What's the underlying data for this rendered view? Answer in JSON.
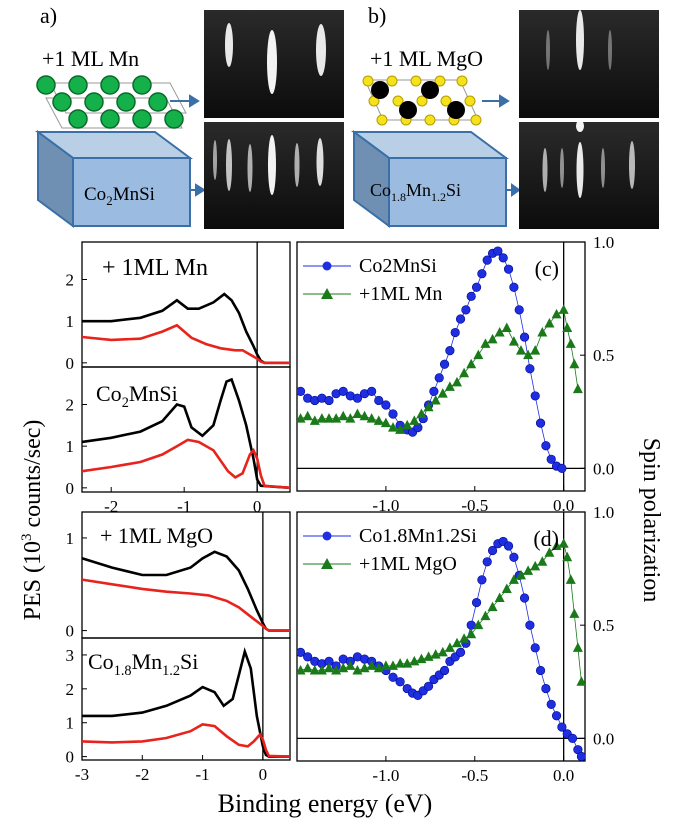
{
  "panel_a": {
    "label": "a)",
    "layer": "+1 ML Mn",
    "substrate": {
      "pre": "Co",
      "sub1": "2",
      "mid": "MnSi",
      "sub2": "",
      "post": ""
    }
  },
  "panel_b": {
    "label": "b)",
    "layer": "+1 ML MgO",
    "substrate": {
      "pre": "Co",
      "sub1": "1.8",
      "mid": "Mn",
      "sub2": "1.2",
      "post": "Si"
    }
  },
  "y_left_label": "PES (10",
  "y_left_sup": "3",
  "y_left_rest": " counts/sec)",
  "y_right_label": "Spin polarization",
  "x_label": "Binding energy (eV)",
  "colors": {
    "black": "#000000",
    "red": "#e8231c",
    "blue": "#1f2ee0",
    "green": "#1a7a1a",
    "mn_ball": "#14b04a",
    "mg_black": "#000000",
    "o_yellow": "#f5e21a",
    "box": "#8fb1d6"
  },
  "chart_data": [
    {
      "type": "line",
      "name": "pes-mn",
      "title": "+ 1ML Mn",
      "xlim": [
        -2.4,
        0.45
      ],
      "ylim": [
        -0.1,
        2.9
      ],
      "yticks": [
        0,
        1,
        2
      ],
      "series": [
        {
          "color": "black",
          "x": [
            -2.4,
            -2.0,
            -1.6,
            -1.3,
            -1.1,
            -0.95,
            -0.8,
            -0.6,
            -0.45,
            -0.35,
            -0.25,
            -0.15,
            -0.05,
            0.0,
            0.05,
            0.1,
            0.45
          ],
          "y": [
            1.0,
            1.0,
            1.08,
            1.25,
            1.5,
            1.3,
            1.3,
            1.45,
            1.65,
            1.5,
            1.2,
            0.75,
            0.4,
            0.2,
            0.05,
            0.0,
            0.0
          ]
        },
        {
          "color": "red",
          "x": [
            -2.4,
            -2.0,
            -1.6,
            -1.3,
            -1.1,
            -0.9,
            -0.7,
            -0.5,
            -0.3,
            -0.2,
            -0.1,
            0.0,
            0.05,
            0.1,
            0.45
          ],
          "y": [
            0.62,
            0.55,
            0.58,
            0.75,
            0.9,
            0.6,
            0.45,
            0.35,
            0.3,
            0.3,
            0.2,
            0.1,
            0.03,
            0.0,
            0.0
          ]
        }
      ]
    },
    {
      "type": "line",
      "name": "pes-co2mnsi",
      "title": "Co2MnSi",
      "xlim": [
        -2.4,
        0.45
      ],
      "ylim": [
        -0.1,
        2.9
      ],
      "yticks": [
        0,
        1,
        2
      ],
      "xticks": [
        -2,
        -1,
        0
      ],
      "series": [
        {
          "color": "black",
          "x": [
            -2.4,
            -2.0,
            -1.6,
            -1.3,
            -1.1,
            -1.0,
            -0.9,
            -0.75,
            -0.6,
            -0.5,
            -0.42,
            -0.35,
            -0.25,
            -0.15,
            -0.05,
            0.0,
            0.05,
            0.45
          ],
          "y": [
            1.1,
            1.2,
            1.35,
            1.6,
            2.0,
            1.95,
            1.45,
            1.25,
            1.5,
            2.1,
            2.55,
            2.6,
            2.1,
            1.5,
            0.7,
            0.2,
            0.05,
            0.0
          ]
        },
        {
          "color": "red",
          "x": [
            -2.4,
            -2.0,
            -1.6,
            -1.3,
            -1.1,
            -0.95,
            -0.8,
            -0.6,
            -0.4,
            -0.3,
            -0.2,
            -0.1,
            -0.05,
            0.0,
            0.05,
            0.1,
            0.45
          ],
          "y": [
            0.4,
            0.5,
            0.62,
            0.8,
            1.0,
            1.15,
            1.1,
            0.9,
            0.4,
            0.25,
            0.35,
            0.8,
            0.9,
            0.7,
            0.3,
            0.05,
            0.0
          ]
        }
      ]
    },
    {
      "type": "line",
      "name": "pes-mgo",
      "title": "+ 1ML MgO",
      "xlim": [
        -3.0,
        0.45
      ],
      "ylim": [
        -0.08,
        1.28
      ],
      "yticks": [
        0,
        1
      ],
      "series": [
        {
          "color": "black",
          "x": [
            -3.0,
            -2.5,
            -2.0,
            -1.6,
            -1.2,
            -1.0,
            -0.8,
            -0.6,
            -0.4,
            -0.25,
            -0.1,
            0.0,
            0.05,
            0.1,
            0.45
          ],
          "y": [
            0.78,
            0.68,
            0.6,
            0.6,
            0.68,
            0.78,
            0.85,
            0.8,
            0.65,
            0.45,
            0.22,
            0.08,
            0.02,
            0.0,
            0.0
          ]
        },
        {
          "color": "red",
          "x": [
            -3.0,
            -2.5,
            -2.0,
            -1.6,
            -1.2,
            -0.9,
            -0.6,
            -0.4,
            -0.2,
            0.0,
            0.05,
            0.1,
            0.45
          ],
          "y": [
            0.55,
            0.5,
            0.45,
            0.42,
            0.4,
            0.38,
            0.32,
            0.25,
            0.15,
            0.05,
            0.02,
            0.0,
            0.0
          ]
        }
      ]
    },
    {
      "type": "line",
      "name": "pes-co18",
      "title": "Co1.8Mn1.2Si",
      "xlim": [
        -3.0,
        0.45
      ],
      "ylim": [
        -0.1,
        3.5
      ],
      "yticks": [
        0,
        1,
        2,
        3
      ],
      "xticks": [
        -3,
        -2,
        -1,
        0
      ],
      "series": [
        {
          "color": "black",
          "x": [
            -3.0,
            -2.5,
            -2.0,
            -1.6,
            -1.2,
            -1.0,
            -0.8,
            -0.65,
            -0.5,
            -0.4,
            -0.3,
            -0.2,
            -0.1,
            0.0,
            0.05,
            0.1,
            0.45
          ],
          "y": [
            1.2,
            1.2,
            1.3,
            1.5,
            1.8,
            2.05,
            1.9,
            1.5,
            1.7,
            2.4,
            3.1,
            2.6,
            1.2,
            0.3,
            0.05,
            0.0,
            0.0
          ]
        },
        {
          "color": "red",
          "x": [
            -3.0,
            -2.5,
            -2.0,
            -1.6,
            -1.2,
            -1.0,
            -0.8,
            -0.6,
            -0.4,
            -0.25,
            -0.15,
            -0.05,
            0.0,
            0.05,
            0.1,
            0.45
          ],
          "y": [
            0.45,
            0.42,
            0.45,
            0.55,
            0.75,
            0.95,
            0.9,
            0.6,
            0.35,
            0.3,
            0.45,
            0.65,
            0.5,
            0.2,
            0.02,
            0.0
          ]
        }
      ]
    },
    {
      "type": "scatter",
      "name": "spin-c",
      "title": "(c)",
      "xlim": [
        -1.5,
        0.12
      ],
      "ylim": [
        -0.1,
        1.0
      ],
      "yticks": [
        0.0,
        0.5,
        1.0
      ],
      "xticks": [
        -1.0,
        -0.5,
        0.0
      ],
      "legend": [
        "Co2MnSi",
        "+1ML Mn"
      ],
      "series": [
        {
          "name": "Co2MnSi",
          "color": "blue",
          "marker": "circle",
          "x": [
            -1.48,
            -1.44,
            -1.4,
            -1.36,
            -1.32,
            -1.28,
            -1.24,
            -1.2,
            -1.16,
            -1.12,
            -1.08,
            -1.04,
            -1.0,
            -0.96,
            -0.92,
            -0.88,
            -0.85,
            -0.82,
            -0.79,
            -0.76,
            -0.73,
            -0.7,
            -0.67,
            -0.64,
            -0.61,
            -0.58,
            -0.55,
            -0.52,
            -0.49,
            -0.46,
            -0.43,
            -0.4,
            -0.37,
            -0.34,
            -0.31,
            -0.28,
            -0.25,
            -0.22,
            -0.19,
            -0.16,
            -0.13,
            -0.1,
            -0.07,
            -0.04,
            -0.01
          ],
          "y": [
            0.34,
            0.31,
            0.3,
            0.31,
            0.3,
            0.33,
            0.34,
            0.32,
            0.31,
            0.33,
            0.34,
            0.3,
            0.28,
            0.24,
            0.19,
            0.17,
            0.16,
            0.18,
            0.22,
            0.28,
            0.34,
            0.4,
            0.46,
            0.52,
            0.6,
            0.66,
            0.7,
            0.76,
            0.8,
            0.86,
            0.92,
            0.95,
            0.96,
            0.93,
            0.88,
            0.8,
            0.7,
            0.58,
            0.44,
            0.32,
            0.2,
            0.1,
            0.04,
            0.01,
            0.0
          ]
        },
        {
          "name": "+1ML Mn",
          "color": "green",
          "marker": "triangle",
          "x": [
            -1.48,
            -1.44,
            -1.4,
            -1.36,
            -1.32,
            -1.28,
            -1.24,
            -1.2,
            -1.16,
            -1.12,
            -1.08,
            -1.04,
            -1.0,
            -0.96,
            -0.92,
            -0.88,
            -0.84,
            -0.8,
            -0.76,
            -0.72,
            -0.68,
            -0.64,
            -0.6,
            -0.56,
            -0.52,
            -0.48,
            -0.44,
            -0.4,
            -0.36,
            -0.32,
            -0.28,
            -0.24,
            -0.2,
            -0.16,
            -0.12,
            -0.08,
            -0.04,
            0.0,
            0.02,
            0.04,
            0.06,
            0.08
          ],
          "y": [
            0.22,
            0.23,
            0.21,
            0.22,
            0.22,
            0.22,
            0.23,
            0.22,
            0.24,
            0.23,
            0.22,
            0.21,
            0.2,
            0.18,
            0.17,
            0.19,
            0.21,
            0.24,
            0.27,
            0.3,
            0.33,
            0.36,
            0.38,
            0.42,
            0.46,
            0.5,
            0.55,
            0.57,
            0.6,
            0.62,
            0.56,
            0.52,
            0.5,
            0.52,
            0.6,
            0.64,
            0.68,
            0.7,
            0.62,
            0.55,
            0.46,
            0.35
          ]
        }
      ]
    },
    {
      "type": "scatter",
      "name": "spin-d",
      "title": "(d)",
      "xlim": [
        -1.5,
        0.12
      ],
      "ylim": [
        -0.1,
        1.0
      ],
      "yticks": [
        0.0,
        0.5,
        1.0
      ],
      "xticks": [
        -1.0,
        -0.5,
        0.0
      ],
      "legend": [
        "Co1.8Mn1.2Si",
        "+1ML MgO"
      ],
      "series": [
        {
          "name": "Co1.8Mn1.2Si",
          "color": "blue",
          "marker": "circle",
          "x": [
            -1.48,
            -1.44,
            -1.4,
            -1.36,
            -1.32,
            -1.28,
            -1.24,
            -1.2,
            -1.16,
            -1.12,
            -1.08,
            -1.04,
            -1.0,
            -0.96,
            -0.92,
            -0.88,
            -0.85,
            -0.82,
            -0.79,
            -0.76,
            -0.73,
            -0.7,
            -0.67,
            -0.64,
            -0.61,
            -0.58,
            -0.55,
            -0.52,
            -0.49,
            -0.46,
            -0.43,
            -0.4,
            -0.37,
            -0.34,
            -0.31,
            -0.28,
            -0.25,
            -0.22,
            -0.19,
            -0.16,
            -0.13,
            -0.1,
            -0.07,
            -0.04,
            -0.01,
            0.02,
            0.05,
            0.08,
            0.1
          ],
          "y": [
            0.38,
            0.36,
            0.34,
            0.33,
            0.34,
            0.32,
            0.35,
            0.34,
            0.36,
            0.35,
            0.34,
            0.32,
            0.3,
            0.27,
            0.25,
            0.22,
            0.2,
            0.19,
            0.21,
            0.23,
            0.26,
            0.28,
            0.3,
            0.34,
            0.36,
            0.38,
            0.42,
            0.5,
            0.6,
            0.7,
            0.78,
            0.83,
            0.86,
            0.87,
            0.85,
            0.8,
            0.72,
            0.62,
            0.5,
            0.4,
            0.3,
            0.22,
            0.15,
            0.1,
            0.05,
            0.02,
            0.0,
            -0.05,
            -0.08
          ]
        },
        {
          "name": "+1ML MgO",
          "color": "green",
          "marker": "triangle",
          "x": [
            -1.48,
            -1.44,
            -1.4,
            -1.36,
            -1.32,
            -1.28,
            -1.24,
            -1.2,
            -1.16,
            -1.12,
            -1.08,
            -1.04,
            -1.0,
            -0.96,
            -0.92,
            -0.88,
            -0.84,
            -0.8,
            -0.76,
            -0.72,
            -0.68,
            -0.64,
            -0.6,
            -0.56,
            -0.52,
            -0.48,
            -0.44,
            -0.4,
            -0.36,
            -0.32,
            -0.28,
            -0.24,
            -0.2,
            -0.16,
            -0.12,
            -0.08,
            -0.04,
            0.0,
            0.02,
            0.04,
            0.06,
            0.08,
            0.1
          ],
          "y": [
            0.3,
            0.31,
            0.3,
            0.3,
            0.31,
            0.3,
            0.31,
            0.32,
            0.3,
            0.31,
            0.32,
            0.31,
            0.32,
            0.32,
            0.33,
            0.33,
            0.34,
            0.35,
            0.36,
            0.37,
            0.38,
            0.4,
            0.42,
            0.44,
            0.46,
            0.5,
            0.54,
            0.58,
            0.62,
            0.66,
            0.7,
            0.72,
            0.74,
            0.76,
            0.78,
            0.82,
            0.85,
            0.86,
            0.8,
            0.7,
            0.55,
            0.4,
            0.25
          ]
        }
      ]
    }
  ]
}
